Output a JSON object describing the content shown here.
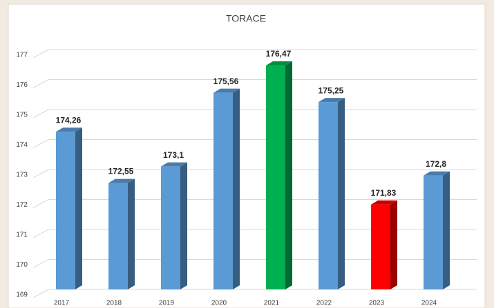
{
  "chart_data": {
    "type": "bar3d",
    "title": "TORACE",
    "categories": [
      "2017",
      "2018",
      "2019",
      "2020",
      "2021",
      "2022",
      "2023",
      "2024"
    ],
    "values": [
      174.26,
      172.55,
      173.1,
      175.56,
      176.47,
      175.25,
      171.83,
      172.8
    ],
    "value_labels": [
      "174,26",
      "172,55",
      "173,1",
      "175,56",
      "176,47",
      "175,25",
      "171,83",
      "172,8"
    ],
    "colors": [
      "#5b9bd5",
      "#5b9bd5",
      "#5b9bd5",
      "#5b9bd5",
      "#00b050",
      "#5b9bd5",
      "#ff0000",
      "#5b9bd5"
    ],
    "ylim": [
      169,
      177
    ],
    "yticks": [
      169,
      170,
      171,
      172,
      173,
      174,
      175,
      176,
      177
    ],
    "grid": true
  }
}
